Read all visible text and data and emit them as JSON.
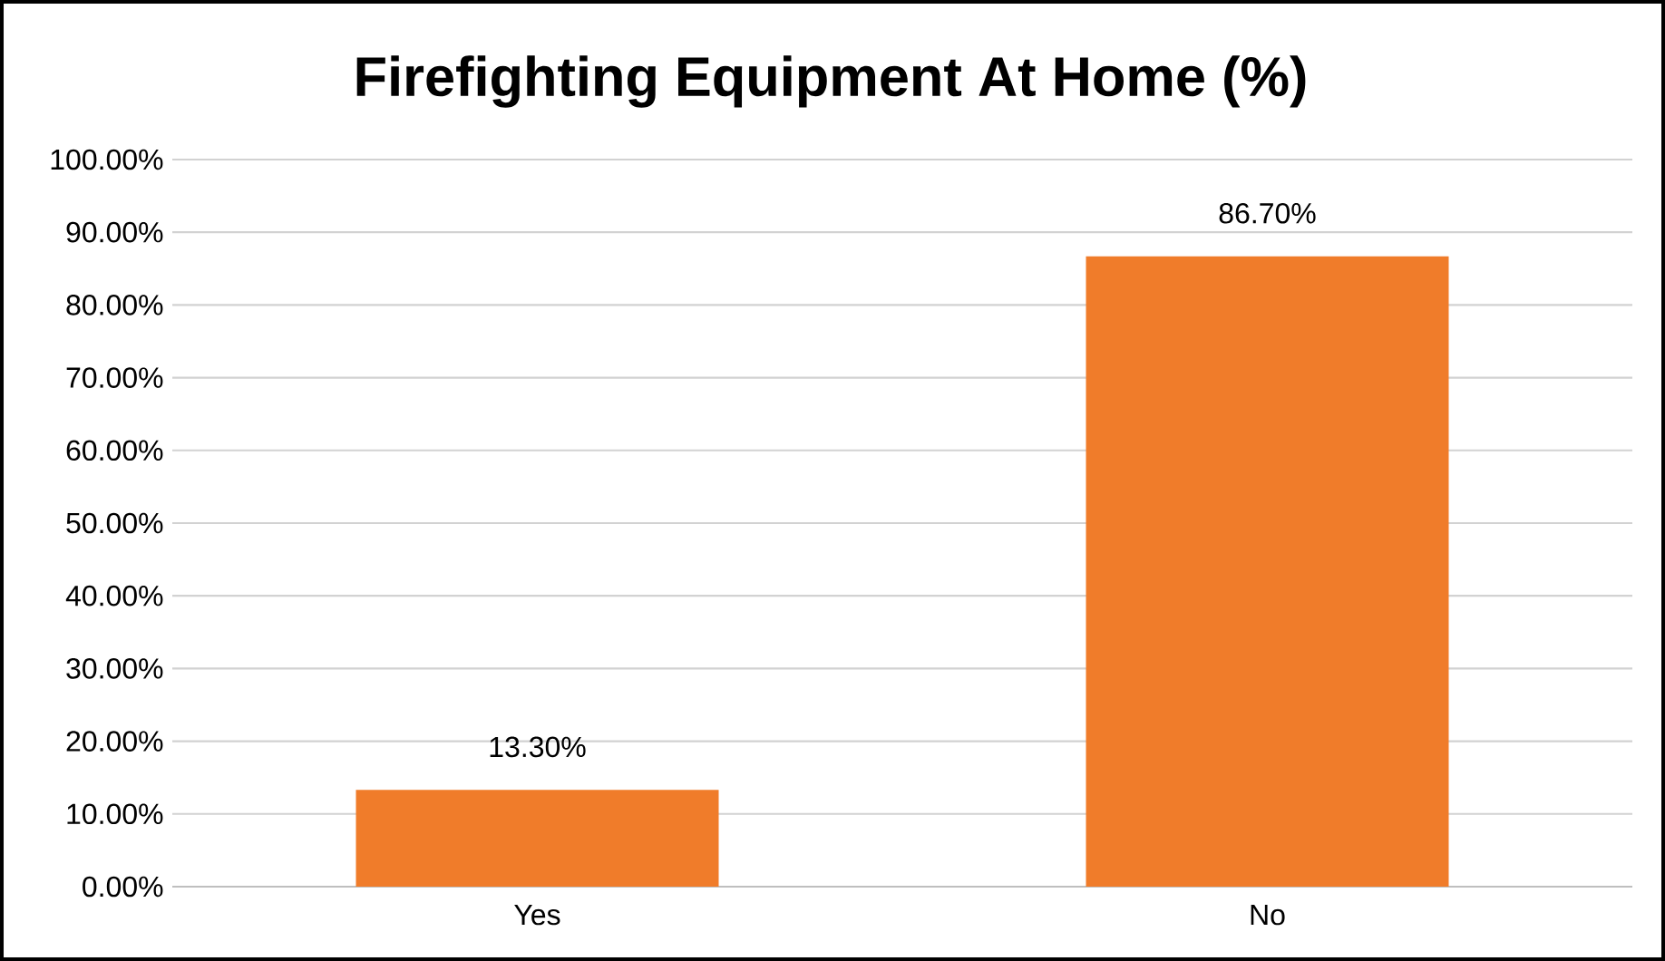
{
  "chart_data": {
    "type": "bar",
    "title": "Firefighting Equipment At Home (%)",
    "categories": [
      "Yes",
      "No"
    ],
    "values": [
      13.3,
      86.7
    ],
    "value_labels": [
      "13.30%",
      "86.70%"
    ],
    "color": "#f07c2a",
    "ylim": [
      0,
      100
    ],
    "yticks": [
      {
        "value": 0,
        "label": "0.00%"
      },
      {
        "value": 10,
        "label": "10.00%"
      },
      {
        "value": 20,
        "label": "20.00%"
      },
      {
        "value": 30,
        "label": "30.00%"
      },
      {
        "value": 40,
        "label": "40.00%"
      },
      {
        "value": 50,
        "label": "50.00%"
      },
      {
        "value": 60,
        "label": "60.00%"
      },
      {
        "value": 70,
        "label": "70.00%"
      },
      {
        "value": 80,
        "label": "80.00%"
      },
      {
        "value": 90,
        "label": "90.00%"
      },
      {
        "value": 100,
        "label": "100.00%"
      }
    ],
    "grid": "y"
  }
}
